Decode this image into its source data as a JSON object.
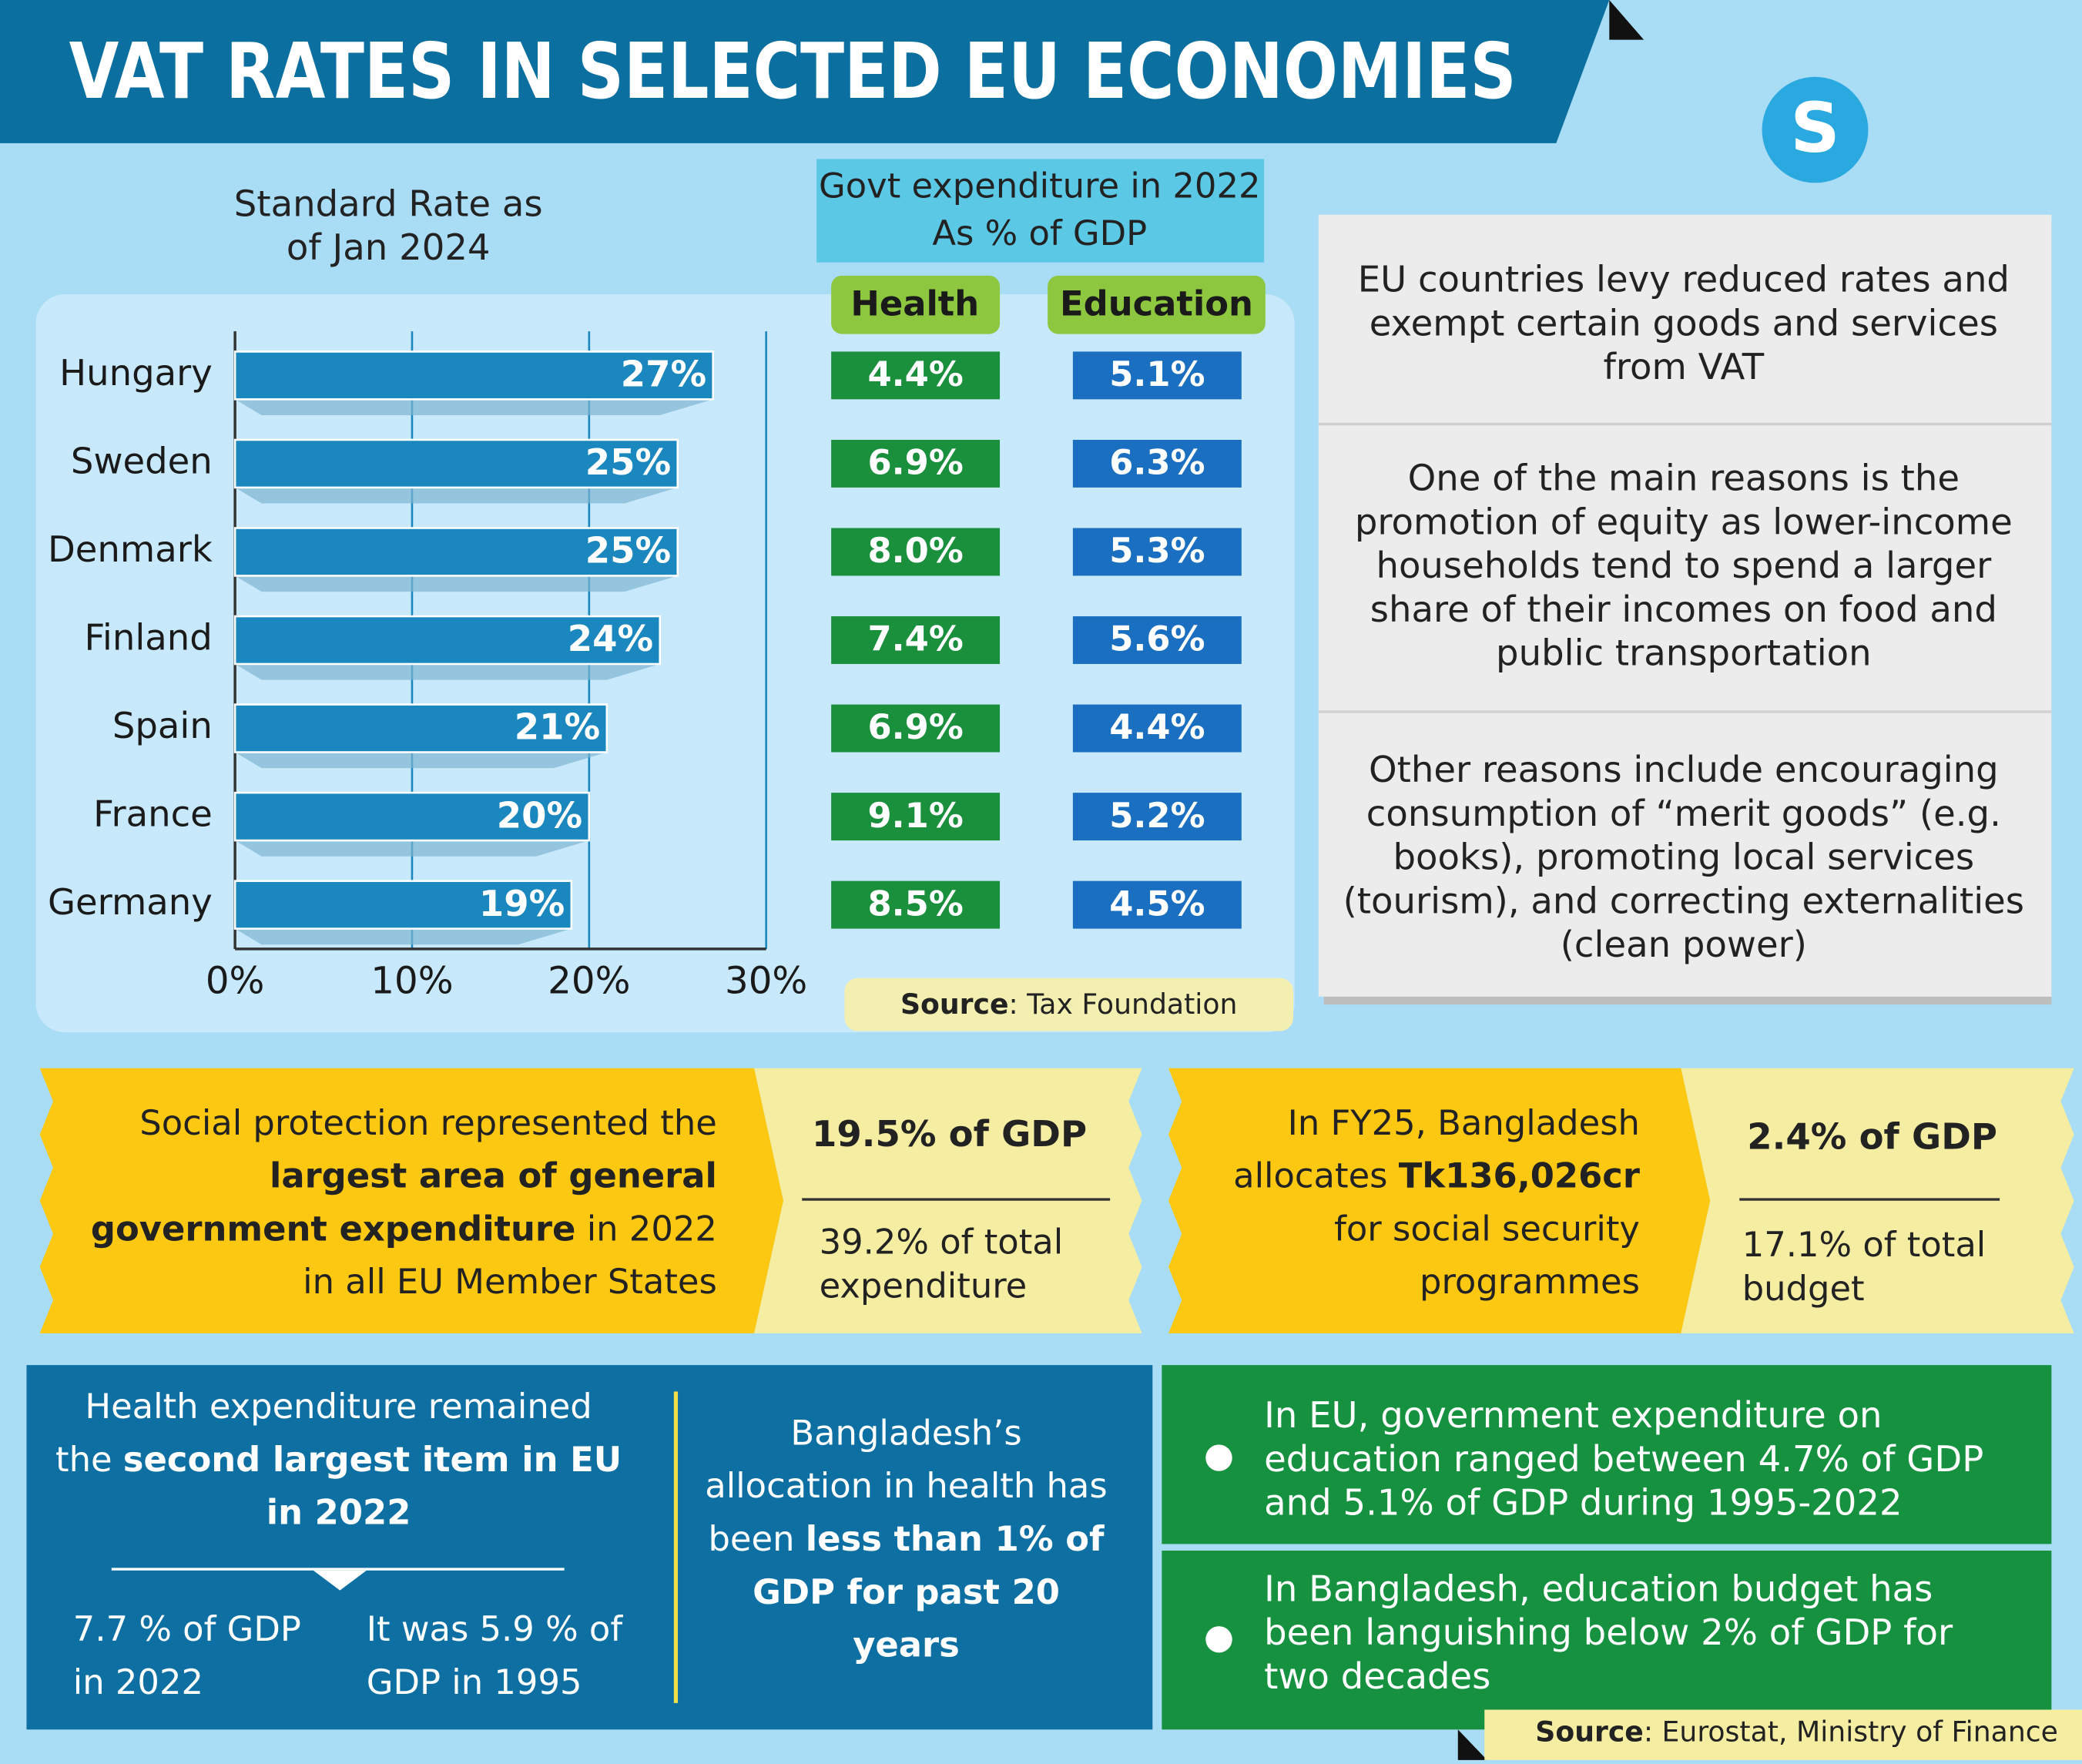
{
  "title": "VAT RATES IN SELECTED EU ECONOMIES",
  "logo": "S",
  "chart_data": {
    "type": "bar",
    "orientation": "horizontal",
    "title": "Standard Rate as of Jan 2024",
    "categories": [
      "Hungary",
      "Sweden",
      "Denmark",
      "Finland",
      "Spain",
      "France",
      "Germany"
    ],
    "values": [
      27,
      25,
      25,
      24,
      21,
      20,
      19
    ],
    "value_labels": [
      "27%",
      "25%",
      "25%",
      "24%",
      "21%",
      "20%",
      "19%"
    ],
    "color": "#1a87bf",
    "xlim": [
      0,
      30
    ],
    "xticks": [
      {
        "value": 0,
        "label": "0%"
      },
      {
        "value": 10,
        "label": "10%"
      },
      {
        "value": 20,
        "label": "20%"
      },
      {
        "value": 30,
        "label": "30%"
      }
    ],
    "grid": true
  },
  "gdp_table": {
    "title": "Govt expenditure in 2022",
    "subtitle": "As % of GDP",
    "columns": [
      "Health",
      "Education"
    ],
    "rows": [
      [
        "4.4%",
        "5.1%"
      ],
      [
        "6.9%",
        "6.3%"
      ],
      [
        "8.0%",
        "5.3%"
      ],
      [
        "7.4%",
        "5.6%"
      ],
      [
        "6.9%",
        "4.4%"
      ],
      [
        "9.1%",
        "5.2%"
      ],
      [
        "8.5%",
        "4.5%"
      ]
    ]
  },
  "source_1": {
    "label": "Source",
    "text": ": Tax Foundation"
  },
  "notes": [
    "EU countries levy reduced rates and exempt certain goods and services from VAT",
    "One of the main reasons is the promotion of equity as lower-income households tend to spend a larger share of their incomes on food and public transportation",
    "Other reasons include encouraging consumption of “merit goods” (e.g. books), promoting local services (tourism), and correcting externalities (clean power)"
  ],
  "social_eu": {
    "parts": [
      "Social protection represented the ",
      "largest area of general government expenditure",
      " in 2022 in all EU Member States"
    ],
    "stat": "19.5% of GDP",
    "sub": "39.2% of total expenditure"
  },
  "social_bd": {
    "parts": [
      "In FY25, Bangladesh allocates ",
      "Tk136,026cr",
      " for social security programmes"
    ],
    "stat": "2.4% of GDP",
    "sub": "17.1% of total budget"
  },
  "health_eu": {
    "parts": [
      "Health expenditure remained the ",
      "second largest item in EU in 2022"
    ],
    "left": "7.7 % of GDP in 2022",
    "right": "It was 5.9 % of GDP in 1995"
  },
  "health_bd": {
    "parts": [
      "Bangladesh’s allocation in health has been ",
      "less than 1% of GDP for past 20 years"
    ]
  },
  "education": [
    "In EU, government expenditure on education ranged between 4.7% of GDP and 5.1% of GDP during 1995-2022",
    "In Bangladesh, education budget has been languishing below 2% of GDP for two decades"
  ],
  "source_2": {
    "label": "Source",
    "text": ": Eurostat, Ministry of Finance"
  }
}
